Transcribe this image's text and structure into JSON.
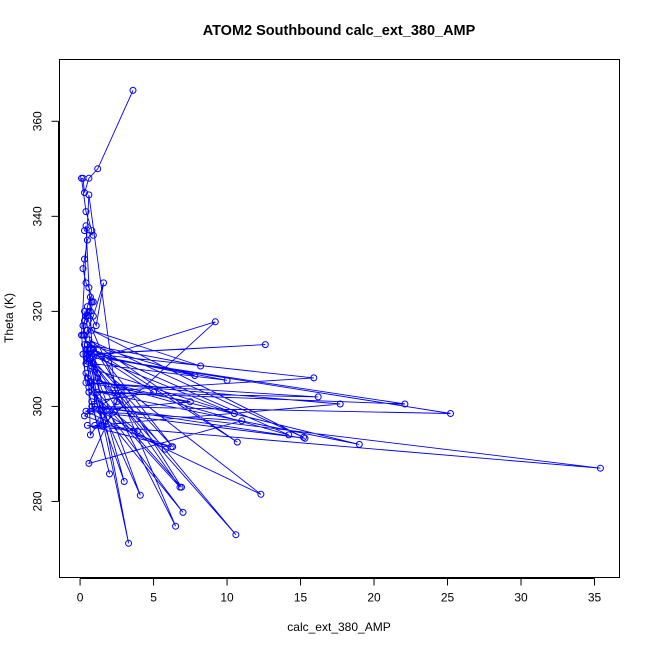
{
  "chart_data": {
    "type": "line",
    "title": "ATOM2 Southbound calc_ext_380_AMP",
    "xlabel": "calc_ext_380_AMP",
    "ylabel": "Theta (K)",
    "xlim": [
      -1.4,
      36.7
    ],
    "ylim": [
      264,
      373
    ],
    "xticks": [
      0,
      5,
      10,
      15,
      20,
      25,
      30,
      35
    ],
    "yticks": [
      280,
      300,
      320,
      340,
      360
    ],
    "grid": false,
    "legend": "none",
    "marker": "open-circle",
    "color": "#0000ff",
    "series": [
      {
        "x": [
          3.6,
          1.2,
          0.6,
          0.3,
          0.2,
          0.1,
          0.4,
          0.8,
          0.5,
          0.3,
          0.2,
          0.4,
          0.6,
          0.9,
          0.7,
          0.3,
          0.2,
          0.5,
          0.6,
          0.3,
          0.2,
          0.4,
          0.5,
          0.7,
          0.8,
          0.5,
          0.3,
          0.6,
          1.1,
          1.6,
          0.9,
          0.5,
          0.3,
          0.2,
          0.4,
          0.1,
          0.6,
          2.5,
          1.4,
          0.7,
          0.5,
          0.4,
          0.9,
          1.2,
          0.5,
          1.5,
          9.2,
          0.5,
          0.4,
          12.6,
          1.0,
          15.9,
          0.6,
          22.1,
          1.8,
          25.2,
          0.8,
          35.4,
          1.0,
          17.7,
          0.7,
          16.2,
          1.2,
          19.0,
          0.5,
          14.2,
          0.9,
          10.7,
          0.6,
          15.2,
          0.8,
          8.2,
          0.5,
          7.8,
          0.6,
          10.0,
          0.9,
          12.3,
          0.4,
          7.5,
          0.6,
          6.9,
          0.8,
          6.3,
          0.5,
          10.5,
          0.7,
          5.8,
          1.4,
          7.0,
          0.6,
          6.8,
          0.9,
          10.6,
          1.2,
          4.1,
          0.4,
          3.0,
          0.7,
          6.5,
          0.3,
          3.3,
          0.5,
          5.0,
          0.8,
          2.0,
          0.6,
          3.9,
          0.5,
          6.2,
          0.3,
          2.8,
          0.6,
          11.0,
          0.7,
          15.3,
          1.0,
          0.4,
          0.3,
          0.9
        ],
        "y": [
          366.5,
          350.0,
          348.0,
          345.0,
          348.0,
          348.0,
          341.0,
          337.0,
          335.0,
          331.0,
          329.0,
          326.0,
          325.0,
          322.0,
          320.0,
          318.0,
          315.0,
          313.0,
          312.0,
          315.0,
          317.0,
          319.0,
          321.0,
          323.0,
          322.0,
          319.0,
          318.0,
          320.0,
          317.0,
          326.0,
          319.0,
          316.0,
          313.0,
          311.0,
          305.0,
          315.0,
          344.5,
          301.0,
          297.0,
          294.0,
          313.0,
          309.0,
          312.0,
          307.0,
          310.0,
          296.0,
          317.8,
          309.5,
          311.0,
          313.0,
          311.0,
          306.0,
          303.0,
          300.5,
          310.0,
          298.5,
          300.0,
          287.0,
          296.0,
          300.5,
          305.0,
          302.0,
          303.0,
          292.0,
          306.0,
          294.0,
          312.0,
          292.5,
          314.0,
          293.5,
          316.0,
          308.5,
          313.0,
          306.5,
          311.0,
          305.5,
          309.0,
          281.5,
          299.0,
          301.0,
          305.0,
          283.0,
          313.0,
          291.5,
          311.0,
          298.5,
          308.0,
          291.0,
          299.0,
          277.7,
          304.0,
          283.0,
          309.0,
          273.0,
          306.0,
          281.3,
          307.0,
          284.2,
          310.0,
          274.8,
          320.0,
          271.2,
          312.0,
          303.0,
          301.0,
          285.8,
          303.0,
          294.8,
          296.0,
          291.5,
          298.0,
          303.0,
          288.0,
          297.0,
          299.0,
          293.3,
          300.0,
          338.0,
          337.0,
          336.0
        ]
      }
    ]
  }
}
